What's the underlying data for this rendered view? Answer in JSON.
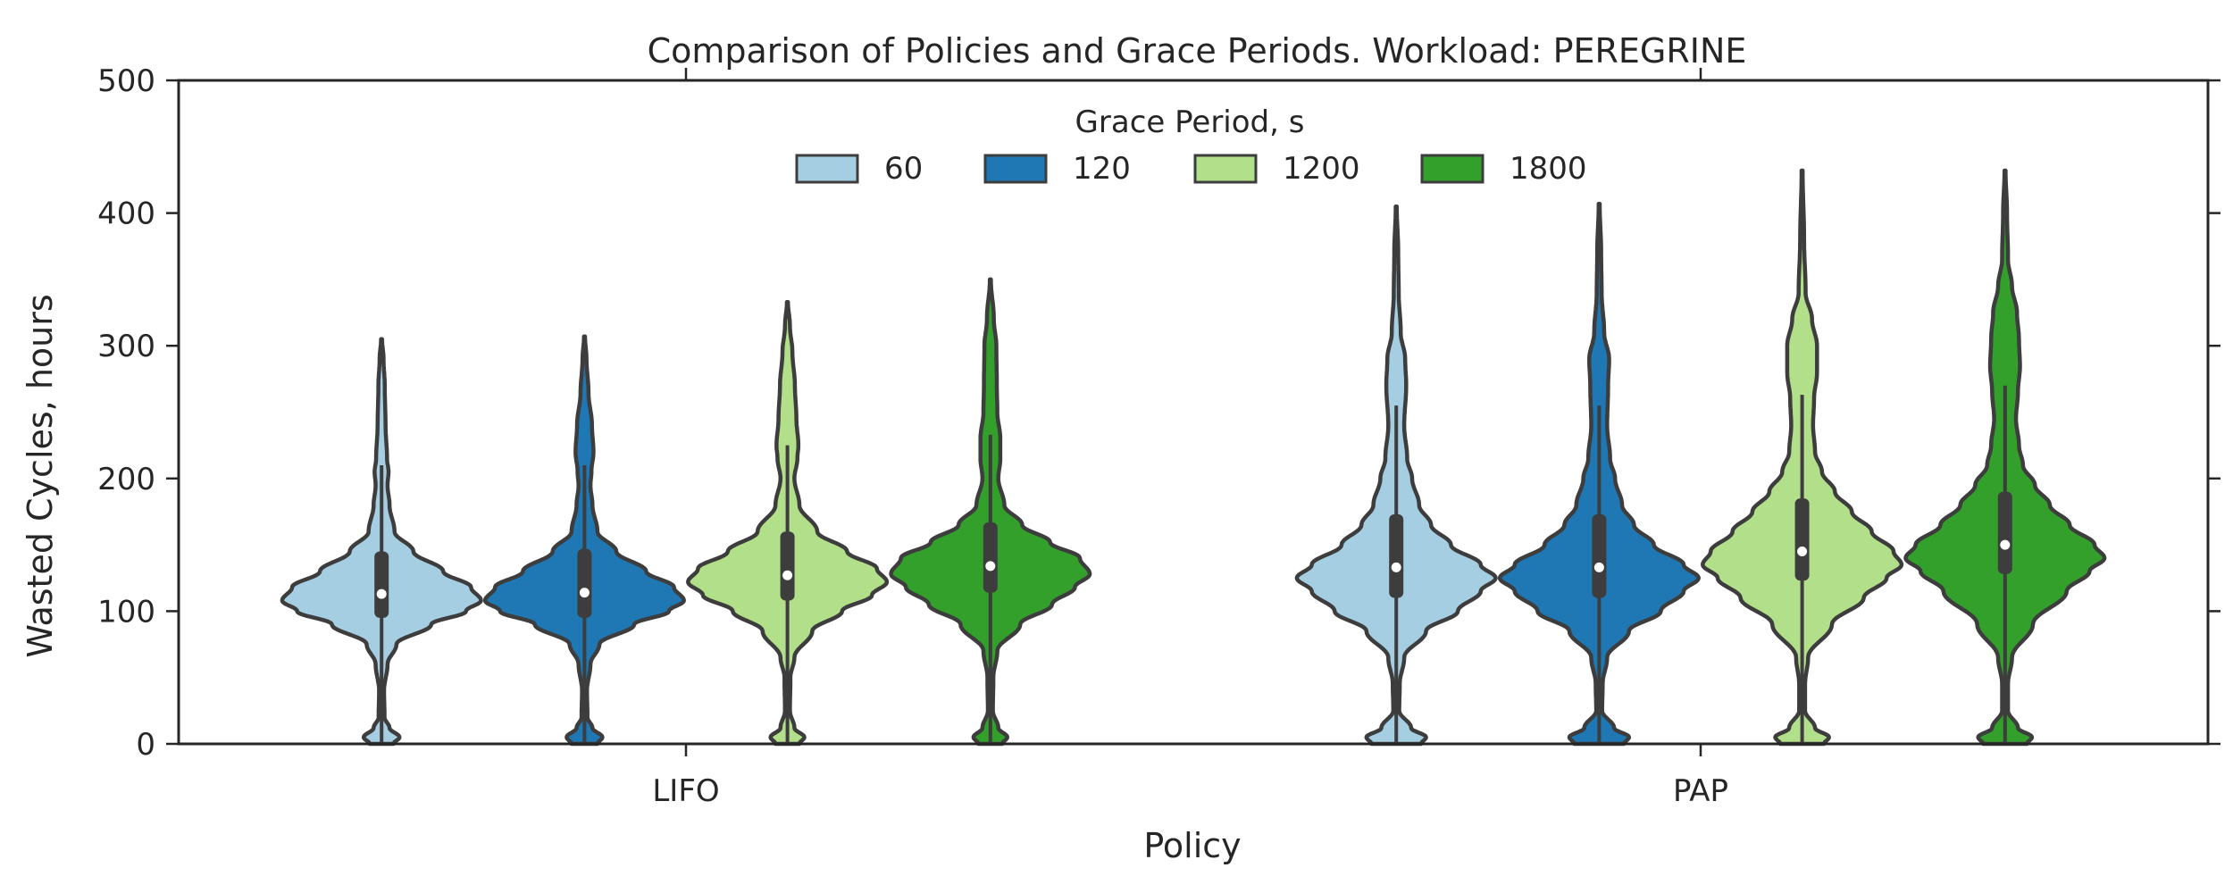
{
  "chart_data": {
    "type": "violin",
    "title": "Comparison of Policies and Grace Periods. Workload: PEREGRINE",
    "xlabel": "Policy",
    "ylabel": "Wasted Cycles, hours",
    "categories": [
      "LIFO",
      "PAP"
    ],
    "ylim": [
      0,
      500
    ],
    "yticks": [
      0,
      100,
      200,
      300,
      400,
      500
    ],
    "grid": false,
    "legend": {
      "title": "Grace Period, s",
      "placement": "top-center"
    },
    "series": [
      {
        "name": "60",
        "color": "#a6cee3",
        "stats": [
          {
            "category": "LIFO",
            "min": 0,
            "max": 305,
            "q1": 95,
            "median": 113,
            "q3": 145,
            "whisker_low": 0,
            "whisker_high": 210,
            "density": [
              [
                0,
                0.12
              ],
              [
                5,
                0.18
              ],
              [
                12,
                0.08
              ],
              [
                20,
                0.03
              ],
              [
                40,
                0.025
              ],
              [
                60,
                0.06
              ],
              [
                75,
                0.15
              ],
              [
                90,
                0.5
              ],
              [
                100,
                0.85
              ],
              [
                108,
                1.0
              ],
              [
                118,
                0.9
              ],
              [
                130,
                0.62
              ],
              [
                145,
                0.32
              ],
              [
                160,
                0.13
              ],
              [
                180,
                0.08
              ],
              [
                195,
                0.06
              ],
              [
                205,
                0.07
              ],
              [
                215,
                0.055
              ],
              [
                240,
                0.04
              ],
              [
                270,
                0.032
              ],
              [
                290,
                0.02
              ],
              [
                305,
                0.005
              ]
            ]
          },
          {
            "category": "PAP",
            "min": 0,
            "max": 405,
            "q1": 110,
            "median": 133,
            "q3": 173,
            "whisker_low": 0,
            "whisker_high": 255,
            "density": [
              [
                0,
                0.25
              ],
              [
                5,
                0.3
              ],
              [
                12,
                0.15
              ],
              [
                25,
                0.03
              ],
              [
                45,
                0.035
              ],
              [
                65,
                0.08
              ],
              [
                85,
                0.3
              ],
              [
                100,
                0.62
              ],
              [
                115,
                0.85
              ],
              [
                125,
                1.0
              ],
              [
                135,
                0.85
              ],
              [
                150,
                0.55
              ],
              [
                165,
                0.35
              ],
              [
                180,
                0.23
              ],
              [
                200,
                0.16
              ],
              [
                215,
                0.11
              ],
              [
                240,
                0.08
              ],
              [
                270,
                0.1
              ],
              [
                290,
                0.09
              ],
              [
                310,
                0.045
              ],
              [
                340,
                0.025
              ],
              [
                370,
                0.02
              ],
              [
                405,
                0.005
              ]
            ]
          }
        ]
      },
      {
        "name": "120",
        "color": "#1f78b4",
        "stats": [
          {
            "category": "LIFO",
            "min": 0,
            "max": 307,
            "q1": 95,
            "median": 114,
            "q3": 147,
            "whisker_low": 0,
            "whisker_high": 210,
            "density": [
              [
                0,
                0.13
              ],
              [
                5,
                0.18
              ],
              [
                12,
                0.08
              ],
              [
                20,
                0.03
              ],
              [
                40,
                0.025
              ],
              [
                60,
                0.06
              ],
              [
                75,
                0.15
              ],
              [
                90,
                0.5
              ],
              [
                100,
                0.85
              ],
              [
                108,
                1.0
              ],
              [
                118,
                0.9
              ],
              [
                130,
                0.62
              ],
              [
                145,
                0.32
              ],
              [
                160,
                0.13
              ],
              [
                180,
                0.08
              ],
              [
                195,
                0.06
              ],
              [
                205,
                0.07
              ],
              [
                220,
                0.09
              ],
              [
                240,
                0.075
              ],
              [
                265,
                0.04
              ],
              [
                290,
                0.02
              ],
              [
                307,
                0.005
              ]
            ]
          },
          {
            "category": "PAP",
            "min": 0,
            "max": 407,
            "q1": 110,
            "median": 133,
            "q3": 173,
            "whisker_low": 0,
            "whisker_high": 255,
            "density": [
              [
                0,
                0.25
              ],
              [
                5,
                0.3
              ],
              [
                12,
                0.15
              ],
              [
                25,
                0.03
              ],
              [
                45,
                0.035
              ],
              [
                65,
                0.08
              ],
              [
                85,
                0.3
              ],
              [
                100,
                0.62
              ],
              [
                115,
                0.85
              ],
              [
                125,
                1.0
              ],
              [
                135,
                0.85
              ],
              [
                150,
                0.55
              ],
              [
                165,
                0.35
              ],
              [
                180,
                0.23
              ],
              [
                200,
                0.16
              ],
              [
                215,
                0.11
              ],
              [
                240,
                0.08
              ],
              [
                270,
                0.09
              ],
              [
                290,
                0.1
              ],
              [
                310,
                0.05
              ],
              [
                340,
                0.025
              ],
              [
                370,
                0.02
              ],
              [
                407,
                0.005
              ]
            ]
          }
        ]
      },
      {
        "name": "1200",
        "color": "#b2df8a",
        "stats": [
          {
            "category": "LIFO",
            "min": 0,
            "max": 333,
            "q1": 108,
            "median": 127,
            "q3": 160,
            "whisker_low": 0,
            "whisker_high": 225,
            "density": [
              [
                0,
                0.12
              ],
              [
                5,
                0.17
              ],
              [
                12,
                0.07
              ],
              [
                25,
                0.025
              ],
              [
                50,
                0.03
              ],
              [
                65,
                0.07
              ],
              [
                85,
                0.25
              ],
              [
                100,
                0.55
              ],
              [
                112,
                0.85
              ],
              [
                122,
                1.0
              ],
              [
                132,
                0.9
              ],
              [
                145,
                0.6
              ],
              [
                160,
                0.3
              ],
              [
                180,
                0.12
              ],
              [
                200,
                0.07
              ],
              [
                215,
                0.1
              ],
              [
                225,
                0.11
              ],
              [
                245,
                0.09
              ],
              [
                270,
                0.075
              ],
              [
                295,
                0.05
              ],
              [
                315,
                0.025
              ],
              [
                333,
                0.005
              ]
            ]
          },
          {
            "category": "PAP",
            "min": 0,
            "max": 432,
            "q1": 123,
            "median": 145,
            "q3": 185,
            "whisker_low": 0,
            "whisker_high": 263,
            "density": [
              [
                0,
                0.22
              ],
              [
                5,
                0.27
              ],
              [
                12,
                0.13
              ],
              [
                25,
                0.03
              ],
              [
                45,
                0.03
              ],
              [
                65,
                0.06
              ],
              [
                90,
                0.3
              ],
              [
                110,
                0.62
              ],
              [
                125,
                0.85
              ],
              [
                135,
                1.0
              ],
              [
                145,
                0.92
              ],
              [
                160,
                0.7
              ],
              [
                175,
                0.5
              ],
              [
                190,
                0.33
              ],
              [
                205,
                0.2
              ],
              [
                220,
                0.13
              ],
              [
                240,
                0.11
              ],
              [
                260,
                0.12
              ],
              [
                280,
                0.15
              ],
              [
                300,
                0.15
              ],
              [
                320,
                0.1
              ],
              [
                340,
                0.035
              ],
              [
                380,
                0.02
              ],
              [
                432,
                0.005
              ]
            ]
          }
        ]
      },
      {
        "name": "1800",
        "color": "#33a02c",
        "stats": [
          {
            "category": "LIFO",
            "min": 0,
            "max": 350,
            "q1": 114,
            "median": 134,
            "q3": 167,
            "whisker_low": 0,
            "whisker_high": 233,
            "density": [
              [
                0,
                0.12
              ],
              [
                5,
                0.17
              ],
              [
                12,
                0.08
              ],
              [
                25,
                0.025
              ],
              [
                50,
                0.03
              ],
              [
                70,
                0.07
              ],
              [
                90,
                0.3
              ],
              [
                105,
                0.62
              ],
              [
                118,
                0.85
              ],
              [
                128,
                1.0
              ],
              [
                140,
                0.9
              ],
              [
                152,
                0.6
              ],
              [
                165,
                0.32
              ],
              [
                180,
                0.14
              ],
              [
                200,
                0.08
              ],
              [
                215,
                0.1
              ],
              [
                230,
                0.1
              ],
              [
                250,
                0.07
              ],
              [
                270,
                0.065
              ],
              [
                300,
                0.06
              ],
              [
                320,
                0.035
              ],
              [
                350,
                0.005
              ]
            ]
          },
          {
            "category": "PAP",
            "min": 0,
            "max": 432,
            "q1": 128,
            "median": 150,
            "q3": 190,
            "whisker_low": 0,
            "whisker_high": 270,
            "density": [
              [
                0,
                0.22
              ],
              [
                5,
                0.27
              ],
              [
                12,
                0.13
              ],
              [
                25,
                0.03
              ],
              [
                45,
                0.03
              ],
              [
                65,
                0.07
              ],
              [
                90,
                0.28
              ],
              [
                115,
                0.62
              ],
              [
                130,
                0.85
              ],
              [
                140,
                1.0
              ],
              [
                150,
                0.9
              ],
              [
                165,
                0.65
              ],
              [
                180,
                0.45
              ],
              [
                195,
                0.3
              ],
              [
                210,
                0.18
              ],
              [
                225,
                0.14
              ],
              [
                245,
                0.11
              ],
              [
                265,
                0.13
              ],
              [
                285,
                0.15
              ],
              [
                305,
                0.14
              ],
              [
                325,
                0.12
              ],
              [
                345,
                0.07
              ],
              [
                365,
                0.03
              ],
              [
                400,
                0.02
              ],
              [
                432,
                0.005
              ]
            ]
          }
        ]
      }
    ]
  }
}
